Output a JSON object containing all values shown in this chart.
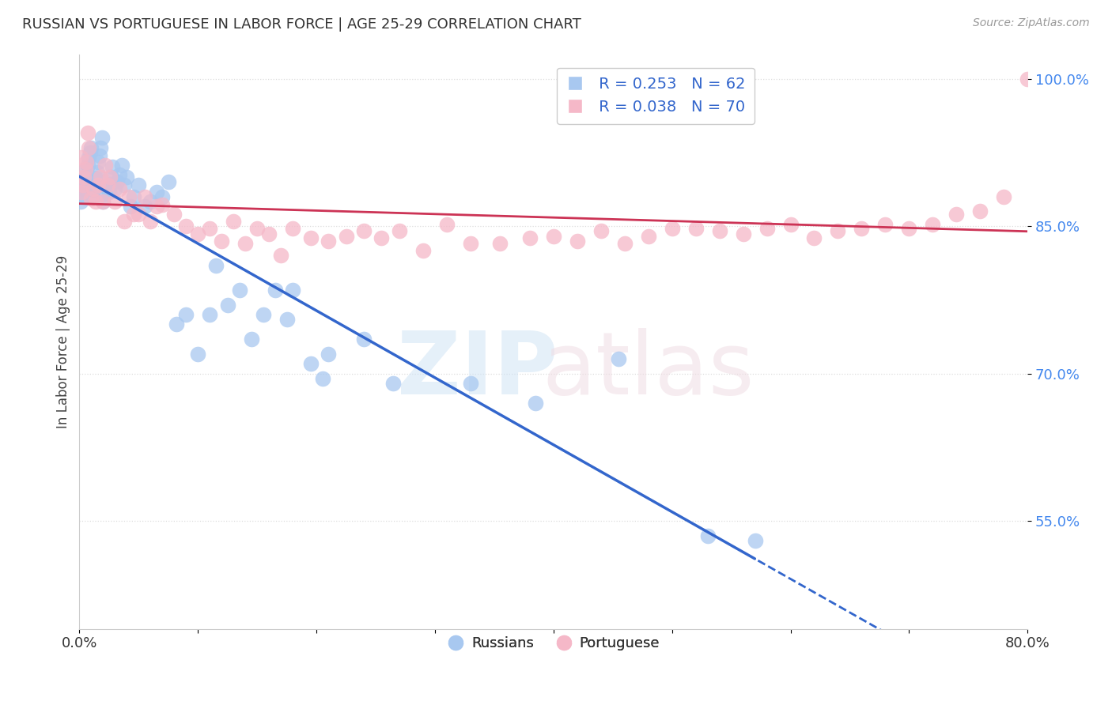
{
  "title": "RUSSIAN VS PORTUGUESE IN LABOR FORCE | AGE 25-29 CORRELATION CHART",
  "source": "Source: ZipAtlas.com",
  "ylabel": "In Labor Force | Age 25-29",
  "russian_R": 0.253,
  "russian_N": 62,
  "portuguese_R": 0.038,
  "portuguese_N": 70,
  "russian_color": "#a8c8f0",
  "portuguese_color": "#f5b8c8",
  "russian_line_color": "#3366cc",
  "portuguese_line_color": "#cc3355",
  "background_color": "#ffffff",
  "grid_color": "#dddddd",
  "legend_label_russian": "Russians",
  "legend_label_portuguese": "Portuguese",
  "xmin": 0.0,
  "xmax": 0.8,
  "ymin": 0.44,
  "ymax": 1.025,
  "yticks": [
    0.55,
    0.7,
    0.85,
    1.0
  ],
  "ytick_labels": [
    "55.0%",
    "70.0%",
    "85.0%",
    "100.0%"
  ],
  "russian_x": [
    0.001,
    0.002,
    0.003,
    0.004,
    0.005,
    0.006,
    0.007,
    0.008,
    0.009,
    0.01,
    0.011,
    0.012,
    0.013,
    0.014,
    0.015,
    0.016,
    0.017,
    0.018,
    0.019,
    0.02,
    0.021,
    0.022,
    0.025,
    0.026,
    0.027,
    0.028,
    0.03,
    0.032,
    0.034,
    0.036,
    0.038,
    0.04,
    0.043,
    0.046,
    0.05,
    0.055,
    0.06,
    0.065,
    0.07,
    0.075,
    0.082,
    0.09,
    0.1,
    0.11,
    0.115,
    0.125,
    0.135,
    0.145,
    0.155,
    0.165,
    0.175,
    0.18,
    0.195,
    0.205,
    0.21,
    0.24,
    0.265,
    0.33,
    0.385,
    0.455,
    0.53,
    0.57
  ],
  "russian_y": [
    0.875,
    0.882,
    0.888,
    0.893,
    0.9,
    0.908,
    0.912,
    0.92,
    0.925,
    0.93,
    0.88,
    0.887,
    0.892,
    0.899,
    0.905,
    0.915,
    0.922,
    0.93,
    0.94,
    0.875,
    0.883,
    0.89,
    0.885,
    0.893,
    0.9,
    0.91,
    0.888,
    0.895,
    0.902,
    0.912,
    0.892,
    0.9,
    0.87,
    0.88,
    0.892,
    0.87,
    0.875,
    0.885,
    0.88,
    0.895,
    0.75,
    0.76,
    0.72,
    0.76,
    0.81,
    0.77,
    0.785,
    0.735,
    0.76,
    0.785,
    0.755,
    0.785,
    0.71,
    0.695,
    0.72,
    0.735,
    0.69,
    0.69,
    0.67,
    0.715,
    0.535,
    0.53
  ],
  "portuguese_x": [
    0.001,
    0.002,
    0.003,
    0.004,
    0.005,
    0.006,
    0.007,
    0.008,
    0.01,
    0.012,
    0.014,
    0.016,
    0.018,
    0.02,
    0.022,
    0.024,
    0.026,
    0.03,
    0.034,
    0.038,
    0.042,
    0.046,
    0.05,
    0.055,
    0.06,
    0.065,
    0.07,
    0.08,
    0.09,
    0.1,
    0.11,
    0.12,
    0.13,
    0.14,
    0.15,
    0.16,
    0.17,
    0.18,
    0.195,
    0.21,
    0.225,
    0.24,
    0.255,
    0.27,
    0.29,
    0.31,
    0.33,
    0.355,
    0.38,
    0.4,
    0.42,
    0.44,
    0.46,
    0.48,
    0.5,
    0.52,
    0.54,
    0.56,
    0.58,
    0.6,
    0.62,
    0.64,
    0.66,
    0.68,
    0.7,
    0.72,
    0.74,
    0.76,
    0.78,
    0.8
  ],
  "portuguese_y": [
    0.92,
    0.885,
    0.892,
    0.9,
    0.908,
    0.915,
    0.945,
    0.93,
    0.878,
    0.888,
    0.875,
    0.892,
    0.9,
    0.875,
    0.912,
    0.892,
    0.9,
    0.875,
    0.888,
    0.855,
    0.88,
    0.862,
    0.862,
    0.88,
    0.855,
    0.87,
    0.872,
    0.862,
    0.85,
    0.842,
    0.848,
    0.835,
    0.855,
    0.832,
    0.848,
    0.842,
    0.82,
    0.848,
    0.838,
    0.835,
    0.84,
    0.845,
    0.838,
    0.845,
    0.825,
    0.852,
    0.832,
    0.832,
    0.838,
    0.84,
    0.835,
    0.845,
    0.832,
    0.84,
    0.848,
    0.848,
    0.845,
    0.842,
    0.848,
    0.852,
    0.838,
    0.845,
    0.848,
    0.852,
    0.848,
    0.852,
    0.862,
    0.865,
    0.88,
    1.0
  ]
}
